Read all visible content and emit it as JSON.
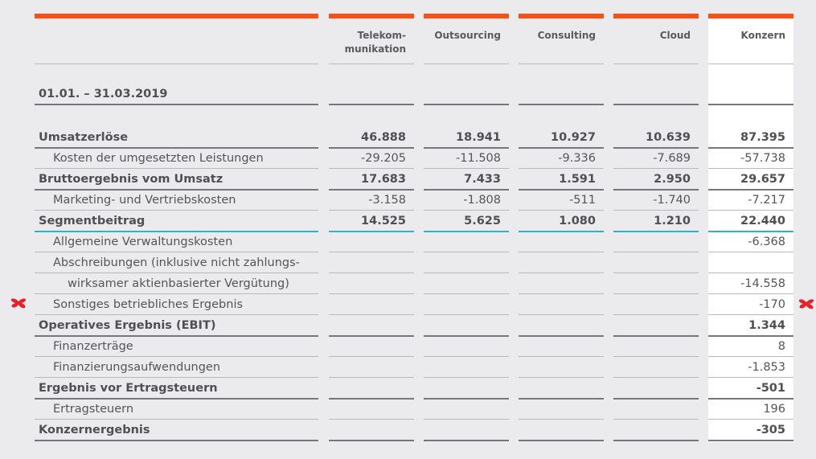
{
  "table": {
    "period": "01.01. – 31.03.2019",
    "columns": [
      {
        "key": "telekom",
        "label_line1": "Telekom-",
        "label_line2": "munikation"
      },
      {
        "key": "outsourcing",
        "label_line1": "Outsourcing",
        "label_line2": ""
      },
      {
        "key": "consulting",
        "label_line1": "Consulting",
        "label_line2": ""
      },
      {
        "key": "cloud",
        "label_line1": "Cloud",
        "label_line2": ""
      },
      {
        "key": "konzern",
        "label_line1": "Konzern",
        "label_line2": ""
      }
    ],
    "rows": [
      {
        "label": "Umsatzerlöse",
        "bold": true,
        "values": [
          "46.888",
          "18.941",
          "10.927",
          "10.639",
          "87.395"
        ]
      },
      {
        "label": "Kosten der umgesetzten Leistungen",
        "bold": false,
        "values": [
          "-29.205",
          "-11.508",
          "-9.336",
          "-7.689",
          "-57.738"
        ]
      },
      {
        "label": "Bruttoergebnis vom Umsatz",
        "bold": true,
        "values": [
          "17.683",
          "7.433",
          "1.591",
          "2.950",
          "29.657"
        ]
      },
      {
        "label": "Marketing- und Vertriebskosten",
        "bold": false,
        "values": [
          "-3.158",
          "-1.808",
          "-511",
          "-1.740",
          "-7.217"
        ]
      },
      {
        "label": "Segmentbeitrag",
        "bold": true,
        "values": [
          "14.525",
          "5.625",
          "1.080",
          "1.210",
          "22.440"
        ]
      },
      {
        "label": "Allgemeine Verwaltungskosten",
        "bold": false,
        "values": [
          "",
          "",
          "",
          "",
          "-6.368"
        ]
      },
      {
        "label": "Abschreibungen (inklusive nicht zahlungs-",
        "bold": false,
        "values": [
          "",
          "",
          "",
          "",
          ""
        ]
      },
      {
        "label": "wirksamer aktienbasierter Vergütung)",
        "bold": false,
        "values": [
          "",
          "",
          "",
          "",
          "-14.558"
        ]
      },
      {
        "label": "Sonstiges betriebliches Ergebnis",
        "bold": false,
        "values": [
          "",
          "",
          "",
          "",
          "-170"
        ]
      },
      {
        "label": "Operatives Ergebnis (EBIT)",
        "bold": true,
        "values": [
          "",
          "",
          "",
          "",
          "1.344"
        ]
      },
      {
        "label": "Finanzerträge",
        "bold": false,
        "values": [
          "",
          "",
          "",
          "",
          "8"
        ]
      },
      {
        "label": "Finanzierungsaufwendungen",
        "bold": false,
        "values": [
          "",
          "",
          "",
          "",
          "-1.853"
        ]
      },
      {
        "label": "Ergebnis vor Ertragsteuern",
        "bold": true,
        "values": [
          "",
          "",
          "",
          "",
          "-501"
        ]
      },
      {
        "label": "Ertragsteuern",
        "bold": false,
        "values": [
          "",
          "",
          "",
          "",
          "196"
        ]
      },
      {
        "label": "Konzernergebnis",
        "bold": true,
        "values": [
          "",
          "",
          "",
          "",
          "-305"
        ]
      }
    ]
  },
  "colors": {
    "accent_orange": "#fa5014",
    "teal_rule": "#2fb3c8",
    "annotation_red": "#e8202a",
    "background": "#ebebed",
    "konzern_bg": "#ffffff"
  },
  "annotations": [
    {
      "type": "red-x-mark",
      "row": "Sonstiges betriebliches Ergebnis",
      "side": "left"
    },
    {
      "type": "red-x-mark",
      "row": "Sonstiges betriebliches Ergebnis",
      "side": "right"
    }
  ]
}
